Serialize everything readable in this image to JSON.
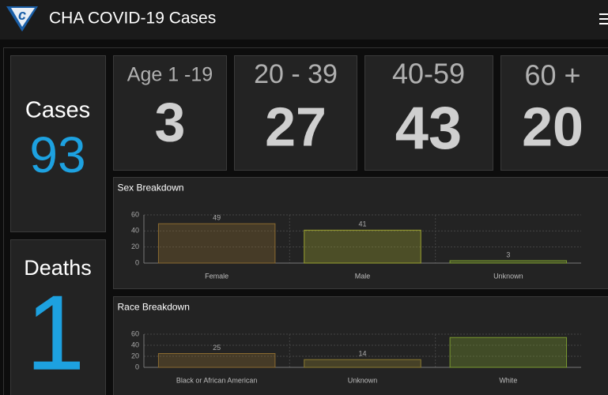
{
  "header": {
    "title": "CHA COVID-19 Cases"
  },
  "tiles": {
    "cases": {
      "label": "Cases",
      "value": 93
    },
    "deaths": {
      "label": "Deaths",
      "value": 1
    },
    "age_groups": [
      {
        "label": "Age 1 -19",
        "value": 3
      },
      {
        "label": "20 - 39",
        "value": 27
      },
      {
        "label": "40-59",
        "value": 43
      },
      {
        "label": "60 +",
        "value": 20
      }
    ]
  },
  "chart_data": [
    {
      "type": "bar",
      "title": "Sex Breakdown",
      "categories": [
        "Female",
        "Male",
        "Unknown"
      ],
      "values": [
        49,
        41,
        3
      ],
      "colors": [
        "#8a6a30",
        "#9aa030",
        "#7a9a30"
      ],
      "ylim": [
        0,
        60
      ],
      "yticks": [
        0,
        20,
        40,
        60
      ],
      "grid": true
    },
    {
      "type": "bar",
      "title": "Race Breakdown",
      "categories": [
        "Black or African American",
        "Unknown",
        "White"
      ],
      "values": [
        25,
        14,
        54
      ],
      "value_labels": [
        "25",
        "14",
        null
      ],
      "colors": [
        "#8a6a30",
        "#8a7a30",
        "#7a9a30"
      ],
      "ylim": [
        0,
        60
      ],
      "yticks": [
        0,
        20,
        40,
        60
      ],
      "grid": true
    }
  ]
}
